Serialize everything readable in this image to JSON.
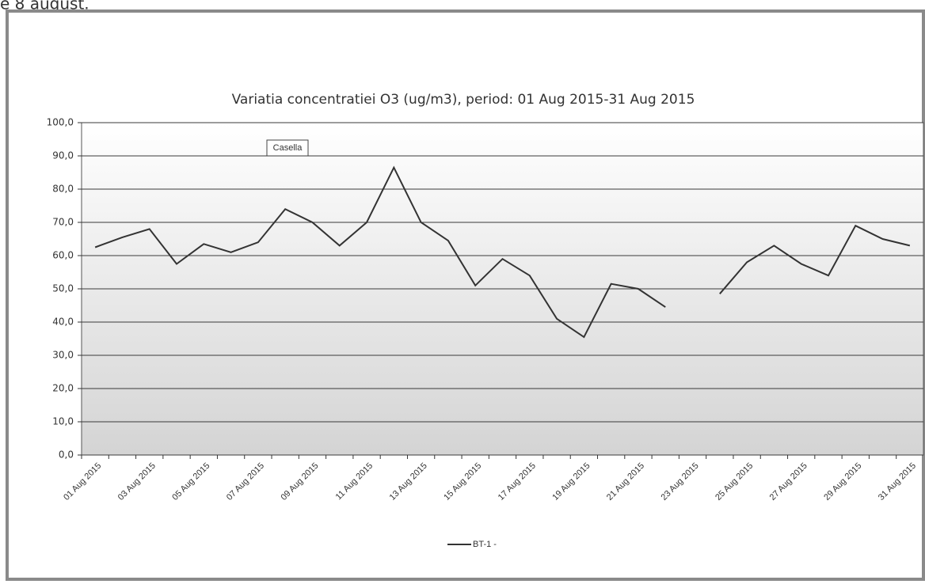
{
  "caption": "e 8 august.",
  "chart_data": {
    "type": "line",
    "title": "Variatia concentratiei O3 (ug/m3), period: 01 Aug 2015-31 Aug 2015",
    "annotation": "Casella",
    "categories": [
      "01 Aug 2015",
      null,
      "03 Aug 2015",
      null,
      "05 Aug 2015",
      null,
      "07 Aug 2015",
      null,
      "09 Aug 2015",
      null,
      "11 Aug 2015",
      null,
      "13 Aug 2015",
      null,
      "15 Aug 2015",
      null,
      "17 Aug 2015",
      null,
      "19 Aug 2015",
      null,
      "21 Aug 2015",
      null,
      "23 Aug 2015",
      null,
      "25 Aug 2015",
      null,
      "27 Aug 2015",
      null,
      "29 Aug 2015",
      null,
      "31 Aug 2015"
    ],
    "series": [
      {
        "name": "BT-1 -",
        "color": "#333333",
        "values": [
          62.5,
          65.5,
          68,
          57.5,
          63.5,
          61,
          64,
          74,
          70,
          63,
          70,
          86.5,
          70,
          64.5,
          51,
          59,
          54,
          41,
          35.5,
          51.5,
          50,
          44.5,
          null,
          48.5,
          58,
          63,
          57.5,
          54,
          69,
          65,
          63
        ]
      }
    ],
    "ylim": [
      0,
      100
    ],
    "yticks": [
      {
        "value": 0,
        "label": "0,0"
      },
      {
        "value": 10,
        "label": "10,0"
      },
      {
        "value": 20,
        "label": "20,0"
      },
      {
        "value": 30,
        "label": "30,0"
      },
      {
        "value": 40,
        "label": "40,0"
      },
      {
        "value": 50,
        "label": "50,0"
      },
      {
        "value": 60,
        "label": "60,0"
      },
      {
        "value": 70,
        "label": "70,0"
      },
      {
        "value": 80,
        "label": "80,0"
      },
      {
        "value": 90,
        "label": "90,0"
      },
      {
        "value": 100,
        "label": "100,0"
      }
    ],
    "grid": true,
    "legend": "bottom"
  }
}
